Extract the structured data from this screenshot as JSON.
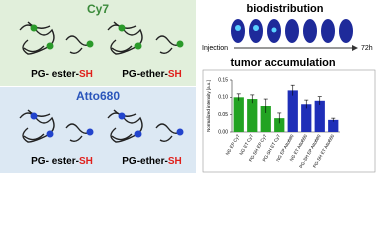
{
  "panels": [
    {
      "dye": "Cy7",
      "labels": [
        {
          "text": "PG- ester-",
          "suffix": "SH"
        },
        {
          "text": "PG-ether-",
          "suffix": "SH"
        }
      ]
    },
    {
      "dye": "Atto680",
      "labels": [
        {
          "text": "PG- ester-",
          "suffix": "SH"
        },
        {
          "text": "PG-ether-",
          "suffix": "SH"
        }
      ]
    }
  ],
  "biodistribution": {
    "title": "biodistribution",
    "start": "Injection",
    "end": "72h"
  },
  "chart_data": {
    "type": "bar",
    "title": "tumor accumulation",
    "y_label": "Normalized intensity [a.u.]",
    "categories": [
      "NG EP Cy7",
      "NG ET Cy7",
      "PG-SH EP Cy7",
      "PG-SH ET Cy7",
      "NG EP Atto680",
      "NG ET Atto680",
      "PG-SH EP Atto680",
      "PG-SH ET Atto680"
    ],
    "values": [
      0.1,
      0.095,
      0.075,
      0.04,
      0.12,
      0.08,
      0.09,
      0.035
    ],
    "errors": [
      0.01,
      0.012,
      0.02,
      0.015,
      0.015,
      0.012,
      0.012,
      0.005
    ],
    "colors": [
      "#22a322",
      "#22a322",
      "#22a322",
      "#22a322",
      "#1f2fb8",
      "#1f2fb8",
      "#1f2fb8",
      "#1f2fb8"
    ],
    "ylim": [
      0,
      0.15
    ],
    "yticks": [
      {
        "value": 0,
        "label": "0.00"
      },
      {
        "value": 0.05,
        "label": "0.05"
      },
      {
        "value": 0.1,
        "label": "0.10"
      },
      {
        "value": 0.15,
        "label": "0.15"
      }
    ]
  }
}
